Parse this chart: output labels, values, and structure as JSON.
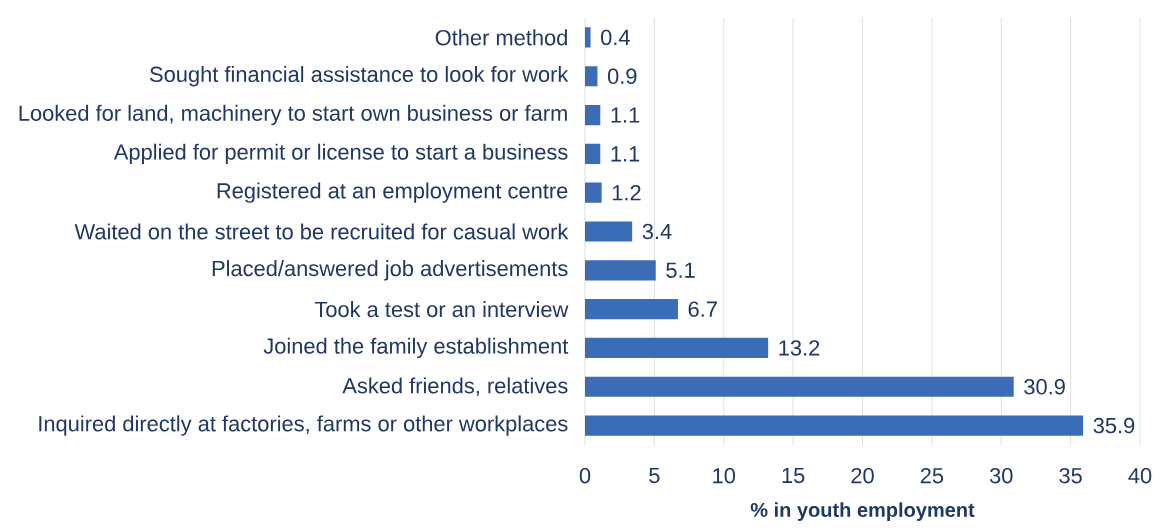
{
  "chart_data": {
    "type": "bar",
    "orientation": "horizontal",
    "xlabel": "% in youth employment",
    "categories": [
      "Other method",
      "Sought financial assistance to look for work",
      "Looked for land, machinery to start own business or farm",
      "Applied for permit or license to start a business",
      "Registered at an employment centre",
      "Waited on the street to be recruited for casual work",
      "Placed/answered job advertisements",
      "Took a test or an interview",
      "Joined the family establishment",
      "Asked friends, relatives",
      "Inquired directly at factories, farms or other workplaces"
    ],
    "values": [
      0.4,
      0.9,
      1.1,
      1.1,
      1.2,
      3.4,
      5.1,
      6.7,
      13.2,
      30.9,
      35.9
    ],
    "color": "#3a6db5",
    "xlim": [
      0,
      40
    ],
    "xticks": [
      0,
      5,
      10,
      15,
      20,
      25,
      30,
      35,
      40
    ],
    "grid": "x",
    "data_labels": true
  }
}
